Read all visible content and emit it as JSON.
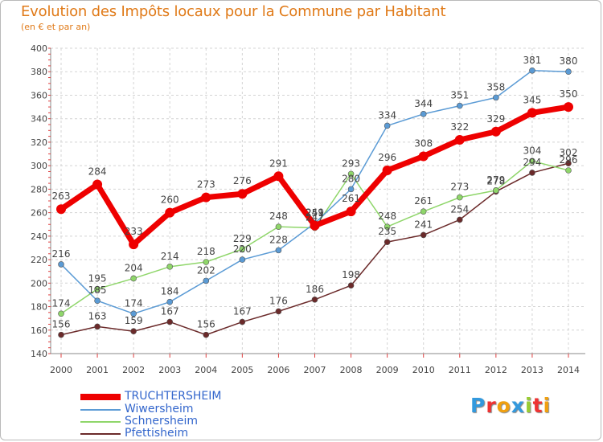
{
  "title": "Evolution des Impôts locaux pour la Commune par Habitant",
  "subtitle": "(en € et par an)",
  "chart_data": {
    "type": "line",
    "title": "Evolution des Impôts locaux pour la Commune par Habitant",
    "subtitle": "(en € et par an)",
    "xlabel": "",
    "ylabel": "",
    "x": [
      "2000",
      "2001",
      "2002",
      "2003",
      "2004",
      "2005",
      "2006",
      "2007",
      "2008",
      "2009",
      "2010",
      "2011",
      "2012",
      "2013",
      "2014"
    ],
    "ylim": [
      140,
      400
    ],
    "yticks": [
      140,
      160,
      180,
      200,
      220,
      240,
      260,
      280,
      300,
      320,
      340,
      360,
      380,
      400
    ],
    "series": [
      {
        "name": "TRUCHTERSHEIM",
        "color": "#ee0000",
        "text_color": "#3366cc",
        "values": [
          263,
          284,
          233,
          260,
          273,
          276,
          291,
          249,
          261,
          296,
          308,
          322,
          329,
          345,
          350
        ]
      },
      {
        "name": "Wiwersheim",
        "color": "#5b9bd5",
        "text_color": "#3366cc",
        "values": [
          216,
          185,
          174,
          184,
          202,
          220,
          228,
          251,
          280,
          334,
          344,
          351,
          358,
          381,
          380
        ]
      },
      {
        "name": "Schnersheim",
        "color": "#8fd66a",
        "text_color": "#3366cc",
        "values": [
          174,
          195,
          204,
          214,
          218,
          229,
          248,
          247,
          293,
          248,
          261,
          273,
          279,
          304,
          296
        ]
      },
      {
        "name": "Pfettisheim",
        "color": "#6b2a2a",
        "text_color": "#3366cc",
        "values": [
          156,
          163,
          159,
          167,
          156,
          167,
          176,
          186,
          198,
          235,
          241,
          254,
          278,
          294,
          302
        ]
      }
    ]
  },
  "logo": {
    "letters": [
      "P",
      "r",
      "o",
      "x",
      "i",
      "t",
      "i"
    ],
    "colors": [
      "#3399dd",
      "#ee3333",
      "#f0a010",
      "#3399dd",
      "#99cc33",
      "#ee3333",
      "#f0a010"
    ]
  }
}
